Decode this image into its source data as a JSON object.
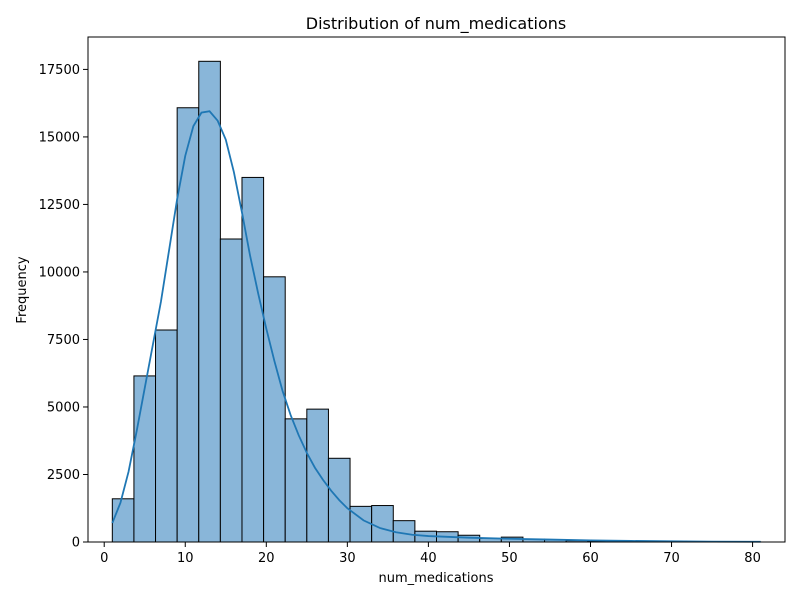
{
  "chart_data": {
    "type": "bar",
    "subtype": "histogram",
    "title": "Distribution of num_medications",
    "xlabel": "num_medications",
    "ylabel": "Frequency",
    "xlim": [
      -2.0,
      84.0
    ],
    "ylim": [
      0,
      18700
    ],
    "xticks": [
      0,
      10,
      20,
      30,
      40,
      50,
      60,
      70,
      80
    ],
    "yticks": [
      0,
      2500,
      5000,
      7500,
      10000,
      12500,
      15000,
      17500
    ],
    "bin_start": 1,
    "bin_width": 2.667,
    "bins": [
      {
        "x0": 1.0,
        "x1": 3.667,
        "count": 1600
      },
      {
        "x0": 3.667,
        "x1": 6.333,
        "count": 6150
      },
      {
        "x0": 6.333,
        "x1": 9.0,
        "count": 7850
      },
      {
        "x0": 9.0,
        "x1": 11.667,
        "count": 16080
      },
      {
        "x0": 11.667,
        "x1": 14.333,
        "count": 17800
      },
      {
        "x0": 14.333,
        "x1": 17.0,
        "count": 11220
      },
      {
        "x0": 17.0,
        "x1": 19.667,
        "count": 13500
      },
      {
        "x0": 19.667,
        "x1": 22.333,
        "count": 9820
      },
      {
        "x0": 22.333,
        "x1": 25.0,
        "count": 4560
      },
      {
        "x0": 25.0,
        "x1": 27.667,
        "count": 4920
      },
      {
        "x0": 27.667,
        "x1": 30.333,
        "count": 3100
      },
      {
        "x0": 30.333,
        "x1": 33.0,
        "count": 1320
      },
      {
        "x0": 33.0,
        "x1": 35.667,
        "count": 1350
      },
      {
        "x0": 35.667,
        "x1": 38.333,
        "count": 790
      },
      {
        "x0": 38.333,
        "x1": 41.0,
        "count": 400
      },
      {
        "x0": 41.0,
        "x1": 43.667,
        "count": 380
      },
      {
        "x0": 43.667,
        "x1": 46.333,
        "count": 250
      },
      {
        "x0": 46.333,
        "x1": 49.0,
        "count": 130
      },
      {
        "x0": 49.0,
        "x1": 51.667,
        "count": 180
      },
      {
        "x0": 51.667,
        "x1": 54.333,
        "count": 110
      },
      {
        "x0": 54.333,
        "x1": 57.0,
        "count": 80
      },
      {
        "x0": 57.0,
        "x1": 59.667,
        "count": 50
      },
      {
        "x0": 59.667,
        "x1": 62.333,
        "count": 35
      },
      {
        "x0": 62.333,
        "x1": 65.0,
        "count": 25
      },
      {
        "x0": 65.0,
        "x1": 67.667,
        "count": 15
      },
      {
        "x0": 67.667,
        "x1": 70.333,
        "count": 12
      },
      {
        "x0": 70.333,
        "x1": 73.0,
        "count": 8
      },
      {
        "x0": 73.0,
        "x1": 75.667,
        "count": 5
      },
      {
        "x0": 75.667,
        "x1": 78.333,
        "count": 4
      },
      {
        "x0": 78.333,
        "x1": 81.0,
        "count": 3
      }
    ],
    "kde": {
      "x": [
        1,
        2,
        3,
        4,
        5,
        6,
        7,
        8,
        9,
        10,
        11,
        12,
        13,
        14,
        15,
        16,
        17,
        18,
        19,
        20,
        21,
        22,
        23,
        24,
        25,
        26,
        27,
        28,
        29,
        30,
        32,
        34,
        36,
        38,
        40,
        45,
        50,
        55,
        60,
        65,
        70,
        75,
        81
      ],
      "y": [
        700,
        1450,
        2600,
        4100,
        5700,
        7300,
        8900,
        10800,
        12700,
        14300,
        15400,
        15900,
        15950,
        15600,
        14900,
        13700,
        12200,
        10600,
        9200,
        7900,
        6700,
        5600,
        4700,
        3950,
        3300,
        2750,
        2300,
        1900,
        1550,
        1250,
        800,
        520,
        360,
        270,
        220,
        160,
        120,
        90,
        60,
        40,
        25,
        15,
        10
      ]
    },
    "colors": {
      "bar_fill": "#89b6d9",
      "bar_edge": "#000000",
      "kde_line": "#1f77b4"
    },
    "grid": false,
    "legend": "none"
  }
}
